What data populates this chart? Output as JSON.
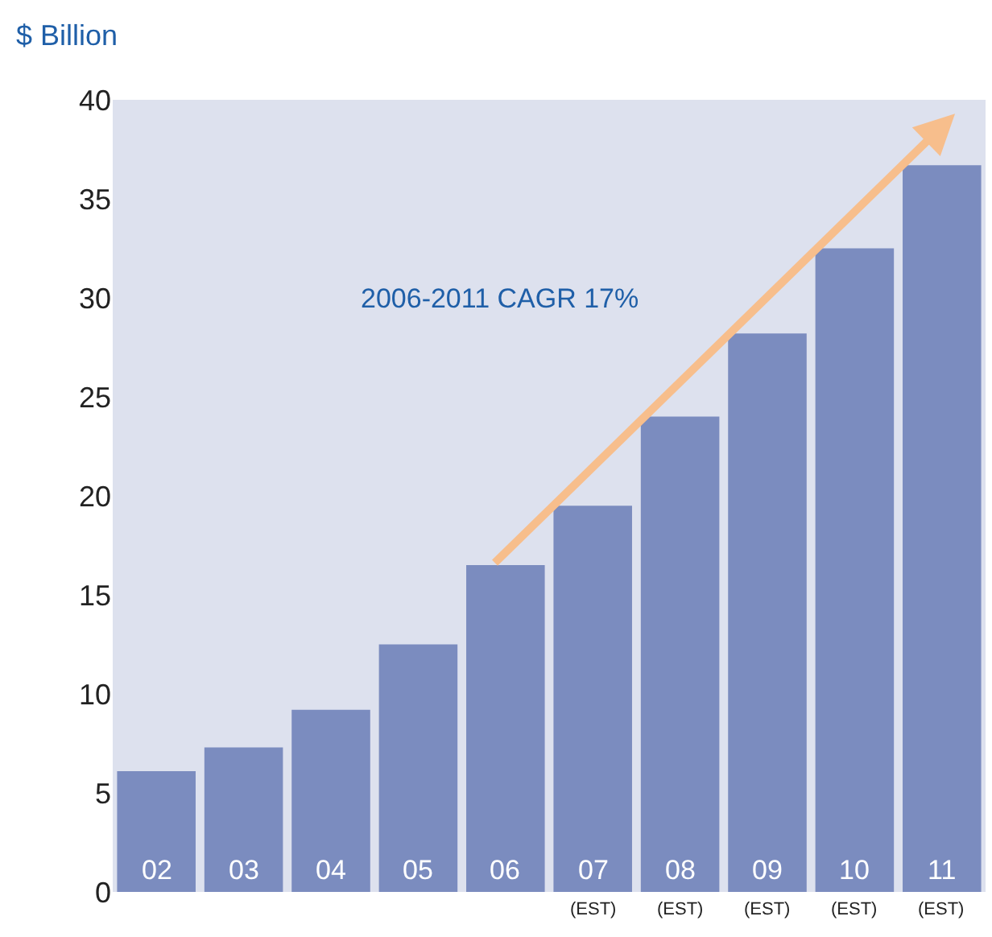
{
  "chart_data": {
    "type": "bar",
    "ylabel": "$ Billion",
    "categories": [
      "02",
      "03",
      "04",
      "05",
      "06",
      "07\n(EST)",
      "08\n(EST)",
      "09\n(EST)",
      "10\n(EST)",
      "11\n(EST)"
    ],
    "values": [
      6.1,
      7.3,
      9.2,
      12.5,
      16.5,
      19.5,
      24,
      28.2,
      32.5,
      36.7
    ],
    "color": "#7b8cbf",
    "ylim": [
      0,
      40
    ],
    "yticks": [
      0,
      5,
      10,
      15,
      20,
      25,
      30,
      35,
      40
    ],
    "annotations": [
      "2006-2011 CAGR 17%"
    ]
  }
}
